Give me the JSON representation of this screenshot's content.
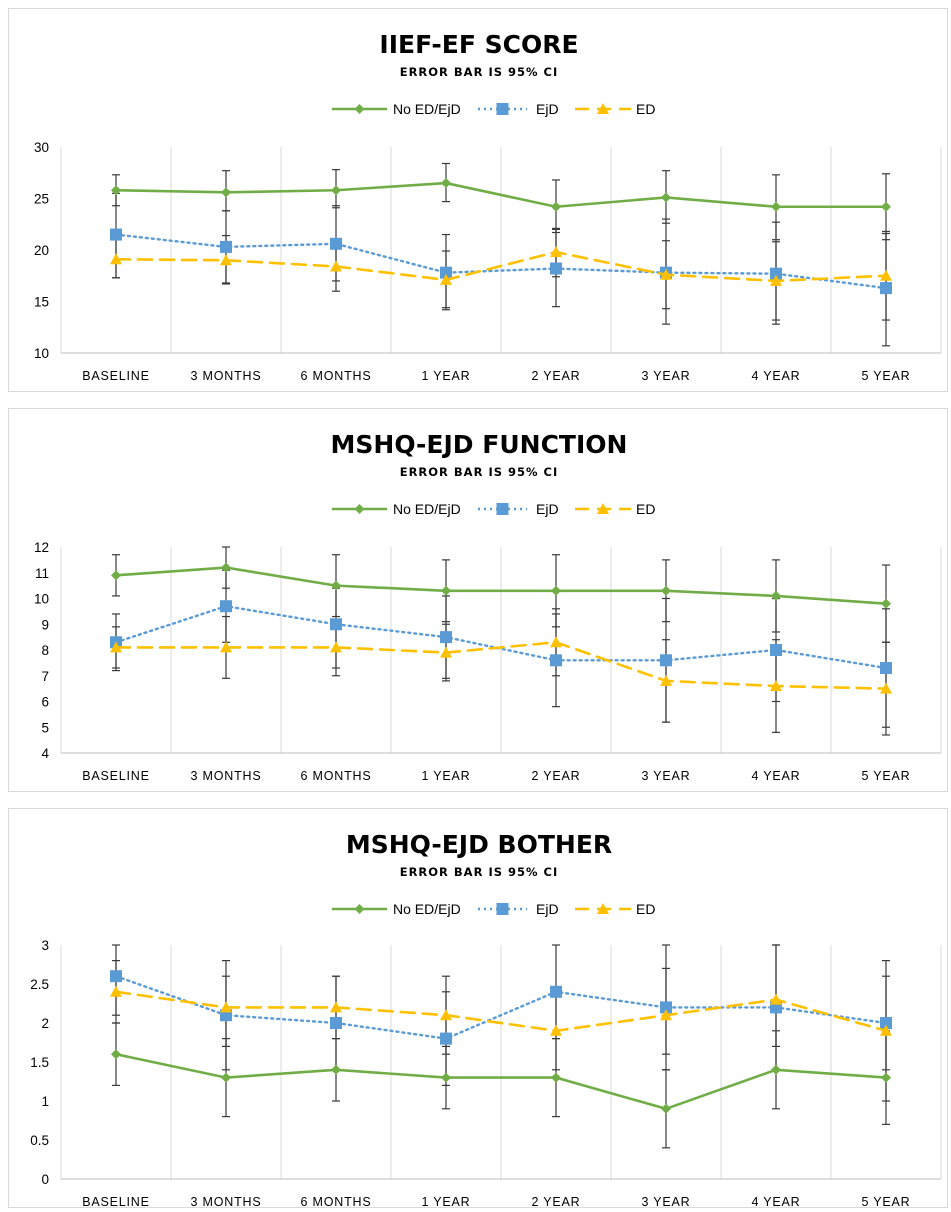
{
  "legend": {
    "series": [
      "No ED/EjD",
      "EjD",
      "ED"
    ]
  },
  "colors": {
    "no_ed_ejd": "#70AD47",
    "ejd": "#5B9BD5",
    "ed": "#FFC000",
    "error_bar": "#3a3a3a",
    "grid": "#d9d9d9"
  },
  "chart_data": [
    {
      "type": "line",
      "title": "IIEF-EF  SCORE",
      "subtitle": "ERROR BAR IS 95% CI",
      "categories": [
        "BASELINE",
        "3 MONTHS",
        "6 MONTHS",
        "1 YEAR",
        "2 YEAR",
        "3 YEAR",
        "4 YEAR",
        "5 YEAR"
      ],
      "ylim": [
        10,
        30
      ],
      "yticks": [
        10,
        15,
        20,
        25,
        30
      ],
      "grid": "vertical",
      "legend_position": "top",
      "series": [
        {
          "name": "No ED/EjD",
          "values": [
            25.8,
            25.6,
            25.8,
            26.5,
            24.2,
            25.1,
            24.2,
            24.2
          ],
          "ci": [
            [
              24.3,
              27.3
            ],
            [
              23.8,
              27.7
            ],
            [
              24.1,
              27.8
            ],
            [
              24.7,
              28.4
            ],
            [
              21.7,
              26.8
            ],
            [
              22.6,
              27.7
            ],
            [
              21.0,
              27.3
            ],
            [
              21.0,
              27.4
            ]
          ]
        },
        {
          "name": "EjD",
          "values": [
            21.5,
            20.3,
            20.6,
            17.8,
            18.2,
            17.8,
            17.7,
            16.3
          ],
          "ci": [
            [
              17.3,
              25.5
            ],
            [
              16.8,
              23.8
            ],
            [
              17.0,
              24.3
            ],
            [
              14.2,
              21.5
            ],
            [
              14.5,
              22.0
            ],
            [
              12.8,
              23.0
            ],
            [
              12.8,
              22.7
            ],
            [
              10.7,
              21.8
            ]
          ]
        },
        {
          "name": "ED",
          "values": [
            19.1,
            19.0,
            18.4,
            17.1,
            19.8,
            17.6,
            17.0,
            17.5
          ],
          "ci": [
            [
              17.3,
              21.0
            ],
            [
              16.7,
              21.4
            ],
            [
              16.0,
              20.8
            ],
            [
              14.4,
              19.9
            ],
            [
              17.4,
              22.1
            ],
            [
              14.3,
              20.9
            ],
            [
              13.2,
              20.8
            ],
            [
              13.2,
              21.6
            ]
          ]
        }
      ]
    },
    {
      "type": "line",
      "title": "MSHQ-EJD  FUNCTION",
      "subtitle": "ERROR BAR IS 95% CI",
      "categories": [
        "BASELINE",
        "3 MONTHS",
        "6 MONTHS",
        "1 YEAR",
        "2 YEAR",
        "3 YEAR",
        "4 YEAR",
        "5 YEAR"
      ],
      "ylim": [
        4,
        12
      ],
      "yticks": [
        4,
        5,
        6,
        7,
        8,
        9,
        10,
        11,
        12
      ],
      "grid": "vertical",
      "legend_position": "top",
      "series": [
        {
          "name": "No ED/EjD",
          "values": [
            10.9,
            11.2,
            10.5,
            10.3,
            10.3,
            10.3,
            10.1,
            9.8
          ],
          "ci": [
            [
              10.1,
              11.7
            ],
            [
              10.4,
              12.0
            ],
            [
              9.3,
              11.7
            ],
            [
              9.1,
              11.5
            ],
            [
              8.9,
              11.7
            ],
            [
              9.1,
              11.5
            ],
            [
              8.7,
              11.5
            ],
            [
              8.3,
              11.3
            ]
          ]
        },
        {
          "name": "EjD",
          "values": [
            8.3,
            9.7,
            9.0,
            8.5,
            7.6,
            7.6,
            8.0,
            7.3
          ],
          "ci": [
            [
              7.2,
              9.4
            ],
            [
              8.3,
              11.1
            ],
            [
              7.3,
              10.4
            ],
            [
              6.9,
              10.1
            ],
            [
              5.8,
              9.4
            ],
            [
              5.2,
              10.0
            ],
            [
              6.0,
              10.0
            ],
            [
              5.0,
              9.6
            ]
          ]
        },
        {
          "name": "ED",
          "values": [
            8.1,
            8.1,
            8.1,
            7.9,
            8.3,
            6.8,
            6.6,
            6.5
          ],
          "ci": [
            [
              7.3,
              8.9
            ],
            [
              6.9,
              9.3
            ],
            [
              7.0,
              9.2
            ],
            [
              6.8,
              9.0
            ],
            [
              7.0,
              9.6
            ],
            [
              5.2,
              8.4
            ],
            [
              4.8,
              8.4
            ],
            [
              4.7,
              8.3
            ]
          ]
        }
      ]
    },
    {
      "type": "line",
      "title": "MSHQ-EJD  BOTHER",
      "subtitle": "ERROR BAR IS 95% CI",
      "categories": [
        "BASELINE",
        "3 MONTHS",
        "6 MONTHS",
        "1 YEAR",
        "2 YEAR",
        "3 YEAR",
        "4 YEAR",
        "5 YEAR"
      ],
      "ylim": [
        0,
        3
      ],
      "yticks": [
        0,
        0.5,
        1,
        1.5,
        2,
        2.5,
        3
      ],
      "grid": "vertical",
      "legend_position": "top",
      "series": [
        {
          "name": "No ED/EjD",
          "values": [
            1.6,
            1.3,
            1.4,
            1.3,
            1.3,
            0.9,
            1.4,
            1.3
          ],
          "ci": [
            [
              1.2,
              2.0
            ],
            [
              0.8,
              1.8
            ],
            [
              1.0,
              1.8
            ],
            [
              0.9,
              1.7
            ],
            [
              0.8,
              1.8
            ],
            [
              0.4,
              1.4
            ],
            [
              0.9,
              1.9
            ],
            [
              0.7,
              1.9
            ]
          ]
        },
        {
          "name": "EjD",
          "values": [
            2.6,
            2.1,
            2.0,
            1.8,
            2.4,
            2.2,
            2.2,
            2.0
          ],
          "ci": [
            [
              2.1,
              3.0
            ],
            [
              1.4,
              2.8
            ],
            [
              1.4,
              2.6
            ],
            [
              1.2,
              2.4
            ],
            [
              1.8,
              3.0
            ],
            [
              1.4,
              3.0
            ],
            [
              1.4,
              3.0
            ],
            [
              1.4,
              2.6
            ]
          ]
        },
        {
          "name": "ED",
          "values": [
            2.4,
            2.2,
            2.2,
            2.1,
            1.9,
            2.1,
            2.3,
            1.9
          ],
          "ci": [
            [
              2.0,
              2.8
            ],
            [
              1.7,
              2.6
            ],
            [
              1.8,
              2.6
            ],
            [
              1.6,
              2.6
            ],
            [
              1.4,
              2.4
            ],
            [
              1.6,
              2.7
            ],
            [
              1.7,
              3.0
            ],
            [
              1.0,
              2.8
            ]
          ]
        }
      ]
    }
  ]
}
